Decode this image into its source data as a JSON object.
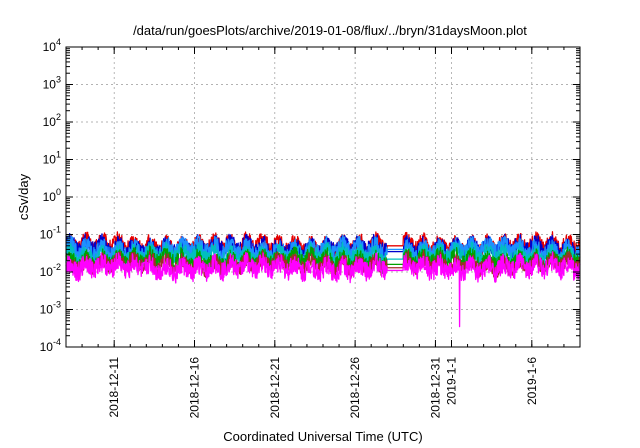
{
  "chart_data": {
    "type": "line",
    "title": "/data/run/goesPlots/archive/2019-01-08/flux/../bryn/31daysMoon.plot",
    "xlabel": "Coordinated Universal Time (UTC)",
    "ylabel": "cSv/day",
    "y_scale": "log",
    "ylim": [
      0.0001,
      10000
    ],
    "xlim": [
      "2018-12-08",
      "2019-01-09"
    ],
    "grid": true,
    "x_ticks": [
      "2018-12-11",
      "2018-12-16",
      "2018-12-21",
      "2018-12-26",
      "2018-12-31",
      "2019-1-1",
      "2019-1-6"
    ],
    "x_tick_dates": [
      "2018-12-11",
      "2018-12-16",
      "2018-12-21",
      "2018-12-26",
      "2018-12-31",
      "2019-01-01",
      "2019-01-06"
    ],
    "y_ticks": [
      {
        "value": 0.0001,
        "base": "10",
        "exp": "-4"
      },
      {
        "value": 0.001,
        "base": "10",
        "exp": "-3"
      },
      {
        "value": 0.01,
        "base": "10",
        "exp": "-2"
      },
      {
        "value": 0.1,
        "base": "10",
        "exp": "-1"
      },
      {
        "value": 1,
        "base": "10",
        "exp": "0"
      },
      {
        "value": 10,
        "base": "10",
        "exp": "1"
      },
      {
        "value": 100,
        "base": "10",
        "exp": "2"
      },
      {
        "value": 1000,
        "base": "10",
        "exp": "3"
      },
      {
        "value": 10000,
        "base": "10",
        "exp": "4"
      }
    ],
    "gap": {
      "start": "2018-12-28",
      "end": "2018-12-29"
    },
    "spike": {
      "date": "2019-01-01T12:00",
      "value": 0.00035,
      "color": "#ff00ff"
    },
    "series": [
      {
        "color": "#e60000",
        "base": 0.052,
        "amp": 0.75,
        "gap_value": 0.05
      },
      {
        "color": "#0000cc",
        "base": 0.045,
        "amp": 0.8,
        "gap_value": 0.035
      },
      {
        "color": "#1e90ff",
        "base": 0.04,
        "amp": 0.8,
        "gap_value": 0.04
      },
      {
        "color": "#00bfbf",
        "base": 0.028,
        "amp": 0.75,
        "gap_value": 0.022
      },
      {
        "color": "#00a000",
        "base": 0.021,
        "amp": 0.75,
        "gap_value": 0.016
      },
      {
        "color": "#a52a2a",
        "base": 0.016,
        "amp": 0.75,
        "gap_value": 0.013
      },
      {
        "color": "#ff00ff",
        "base": 0.013,
        "amp": 0.95,
        "gap_value": 0.011
      }
    ]
  }
}
